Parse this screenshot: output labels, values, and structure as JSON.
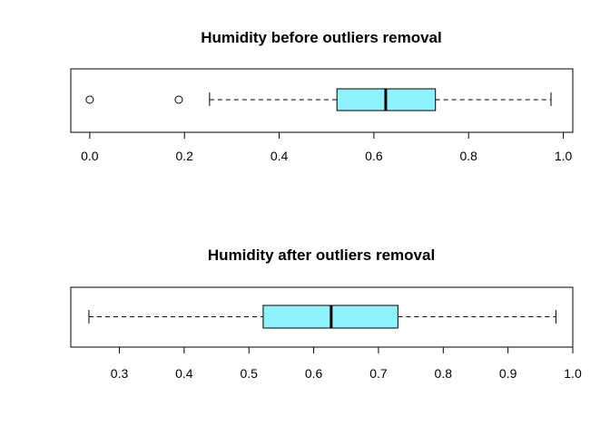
{
  "chart_data": [
    {
      "type": "boxplot",
      "orientation": "horizontal",
      "title": "Humidity before outliers removal",
      "xlim": [
        -0.04,
        1.02
      ],
      "ticks": [
        0.0,
        0.2,
        0.4,
        0.6,
        0.8,
        1.0
      ],
      "tick_labels": [
        "0.0",
        "0.2",
        "0.4",
        "0.6",
        "0.8",
        "1.0"
      ],
      "box": {
        "whisker_low": 0.253,
        "q1": 0.522,
        "median": 0.625,
        "q3": 0.73,
        "whisker_high": 0.974
      },
      "outliers": [
        0.0,
        0.188
      ],
      "box_color": "#8FF2FF"
    },
    {
      "type": "boxplot",
      "orientation": "horizontal",
      "title": "Humidity after outliers removal",
      "xlim": [
        0.225,
        1.0
      ],
      "ticks": [
        0.3,
        0.4,
        0.5,
        0.6,
        0.7,
        0.8,
        0.9,
        1.0
      ],
      "tick_labels": [
        "0.3",
        "0.4",
        "0.5",
        "0.6",
        "0.7",
        "0.8",
        "0.9",
        "1.0"
      ],
      "box": {
        "whisker_low": 0.253,
        "q1": 0.522,
        "median": 0.627,
        "q3": 0.73,
        "whisker_high": 0.974
      },
      "outliers": [],
      "box_color": "#8FF2FF"
    }
  ]
}
